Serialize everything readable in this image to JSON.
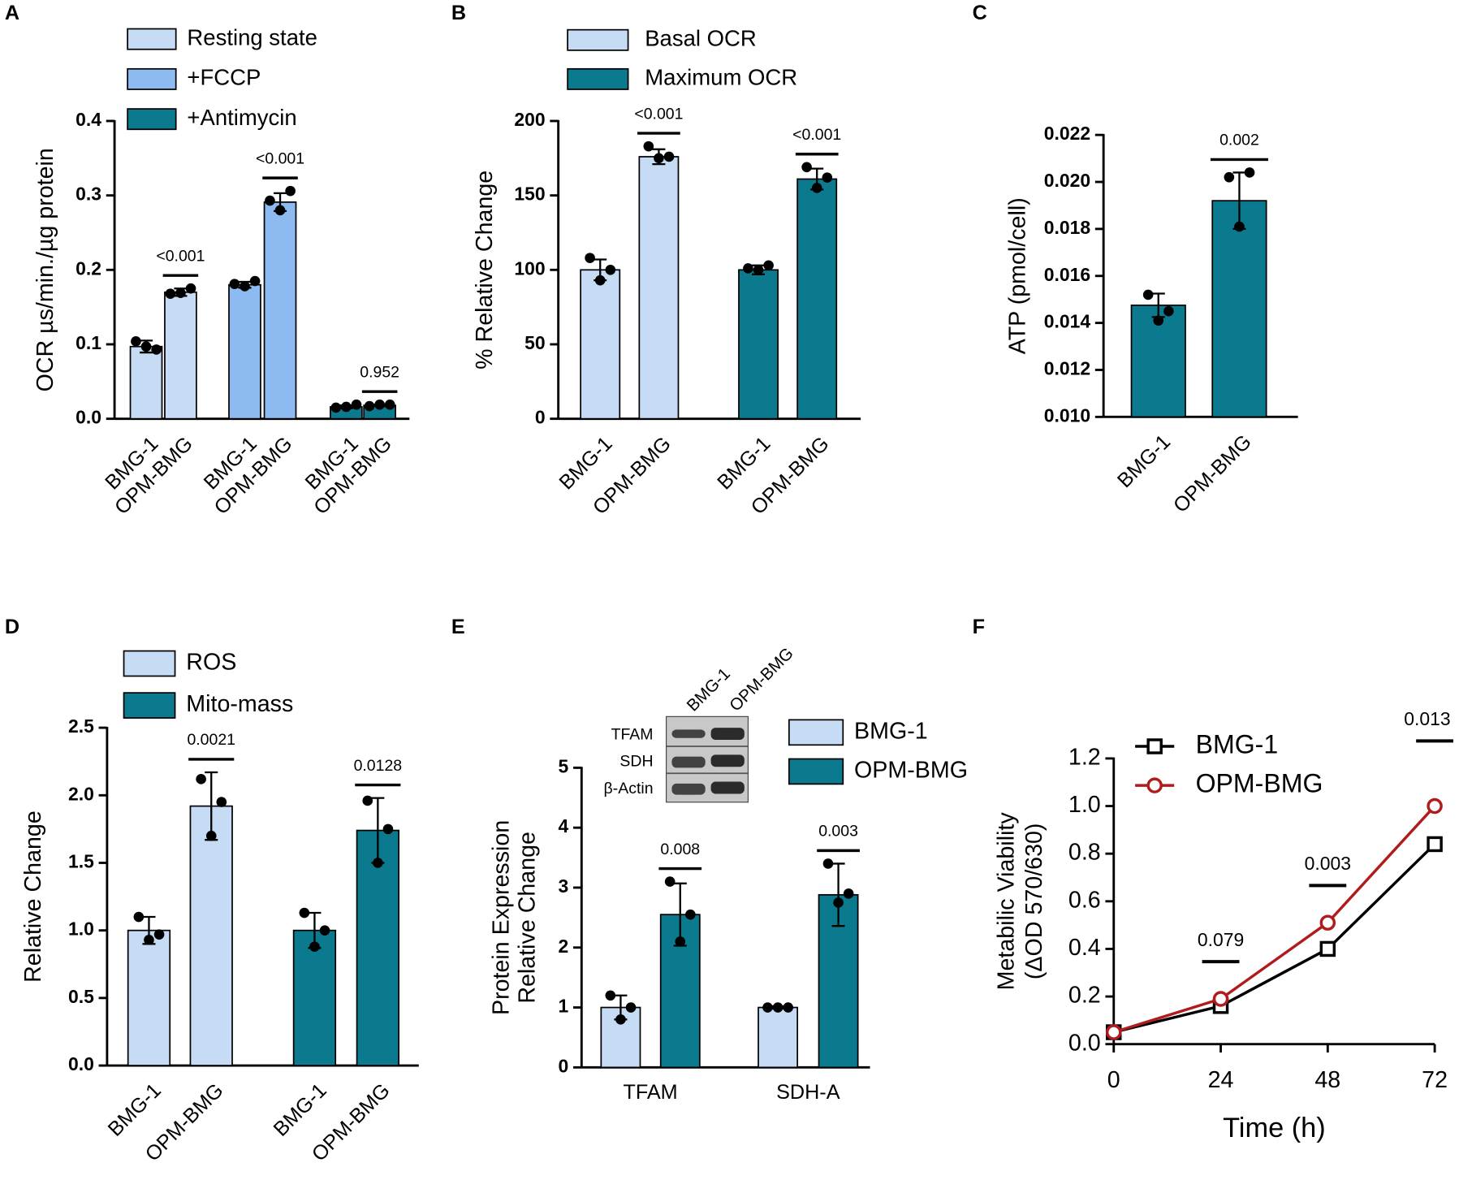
{
  "chart_data": [
    {
      "type": "bar",
      "panel": "A",
      "ylabel": "OCR µs/min./µg protein",
      "categories": [
        "BMG-1",
        "OPM-BMG"
      ],
      "ylim": [
        0,
        0.4
      ],
      "yticks": [
        {
          "value": 0,
          "label": "0.0"
        },
        0.1,
        0.2,
        0.3,
        0.4
      ],
      "series": [
        {
          "name": "Resting state",
          "color": "#c6dcf5",
          "values": [
            0.097,
            0.17
          ],
          "errors": [
            0.008,
            0.005
          ],
          "points": [
            [
              0.104,
              0.093,
              0.097
            ],
            [
              0.168,
              0.175,
              0.169
            ]
          ],
          "p": "<0.001"
        },
        {
          "name": "+FCCP",
          "color": "#8dbaf0",
          "values": [
            0.18,
            0.291
          ],
          "errors": [
            0.004,
            0.012
          ],
          "points": [
            [
              0.181,
              0.185,
              0.178
            ],
            [
              0.293,
              0.306,
              0.28
            ]
          ],
          "p": "<0.001"
        },
        {
          "name": "+Antimycin",
          "color": "#0b7a8e",
          "values": [
            0.016,
            0.018
          ],
          "errors": [
            0.002,
            0.001
          ],
          "points": [
            [
              0.015,
              0.019,
              0.016
            ],
            [
              0.017,
              0.019,
              0.019
            ]
          ],
          "p": "0.952"
        }
      ]
    },
    {
      "type": "bar",
      "panel": "B",
      "ylabel": "% Relative Change",
      "categories": [
        "BMG-1",
        "OPM-BMG"
      ],
      "ylim": [
        0,
        200
      ],
      "yticks": [
        0,
        50,
        100,
        150,
        200
      ],
      "series": [
        {
          "name": "Basal OCR",
          "color": "#c6dcf5",
          "values": [
            100,
            176
          ],
          "errors": [
            7,
            5
          ],
          "points": [
            [
              108,
              100,
              93
            ],
            [
              183,
              176,
              175
            ]
          ],
          "p": "<0.001"
        },
        {
          "name": "Maximum OCR",
          "color": "#0b7a8e",
          "values": [
            100,
            161
          ],
          "errors": [
            3,
            7
          ],
          "points": [
            [
              101,
              103,
              100
            ],
            [
              169,
              162,
              155
            ]
          ],
          "p": "<0.001"
        }
      ]
    },
    {
      "type": "bar",
      "panel": "C",
      "ylabel": "ATP (pmol/cell)",
      "categories": [
        "BMG-1",
        "OPM-BMG"
      ],
      "ylim": [
        0.01,
        0.022
      ],
      "yticks": [
        {
          "value": 0.01,
          "label": "0.010"
        },
        0.012,
        0.014,
        0.016,
        0.018,
        {
          "value": 0.02,
          "label": "0.020"
        },
        0.022
      ],
      "series": [
        {
          "color": "#0b7a8e",
          "values": [
            0.01475,
            0.0192
          ],
          "errors": [
            0.0005,
            0.0012
          ],
          "points": [
            [
              0.0152,
              0.0145,
              0.0141
            ],
            [
              0.0202,
              0.0204,
              0.0181
            ]
          ],
          "p": "0.002"
        }
      ]
    },
    {
      "type": "bar",
      "panel": "D",
      "ylabel": "Relative Change",
      "categories": [
        "BMG-1",
        "OPM-BMG"
      ],
      "ylim": [
        0,
        2.5
      ],
      "yticks": [
        {
          "value": 0,
          "label": "0.0"
        },
        0.5,
        {
          "value": 1,
          "label": "1.0"
        },
        1.5,
        {
          "value": 2,
          "label": "2.0"
        },
        2.5
      ],
      "series": [
        {
          "name": "ROS",
          "color": "#c6dcf5",
          "values": [
            1.0,
            1.92
          ],
          "errors": [
            0.1,
            0.25
          ],
          "points": [
            [
              1.1,
              0.97,
              0.93
            ],
            [
              2.12,
              1.95,
              1.7
            ]
          ],
          "p": "0.0021"
        },
        {
          "name": "Mito-mass",
          "color": "#0b7a8e",
          "values": [
            1.0,
            1.74
          ],
          "errors": [
            0.13,
            0.24
          ],
          "points": [
            [
              1.13,
              1.0,
              0.88
            ],
            [
              1.96,
              1.75,
              1.5
            ]
          ],
          "p": "0.0128"
        }
      ]
    },
    {
      "type": "grouped_bar",
      "panel": "E",
      "ylabel": [
        "Protein Expression",
        "Relative Change"
      ],
      "categories": [
        "TFAM",
        "SDH-A"
      ],
      "p_values": [
        "0.008",
        "0.003"
      ],
      "ylim": [
        0,
        5
      ],
      "yticks": [
        0,
        1,
        2,
        3,
        4,
        5
      ],
      "blot": {
        "rows": [
          "TFAM",
          "SDH",
          "β-Actin"
        ],
        "columns": [
          "BMG-1",
          "OPM-BMG"
        ]
      },
      "series": [
        {
          "name": "BMG-1",
          "color": "#c6dcf5",
          "values": [
            1.0,
            1.0
          ],
          "errors": [
            0.2,
            0.02
          ],
          "points": [
            [
              1.2,
              1.0,
              0.8
            ],
            [
              1.0,
              1.0,
              1.0
            ]
          ]
        },
        {
          "name": "OPM-BMG",
          "color": "#0b7a8e",
          "values": [
            2.55,
            2.88
          ],
          "errors": [
            0.52,
            0.52
          ],
          "points": [
            [
              3.1,
              2.55,
              2.1
            ],
            [
              3.4,
              2.9,
              2.75
            ]
          ]
        }
      ]
    },
    {
      "type": "line",
      "panel": "F",
      "ylabel": [
        "Metabilic Viability",
        "(ΔOD 570/630)"
      ],
      "xlabel": "Time (h)",
      "x": [
        0,
        24,
        48,
        72
      ],
      "xlim": [
        0,
        72
      ],
      "xticks": [
        0,
        24,
        48,
        72
      ],
      "ylim": [
        0,
        1.2
      ],
      "yticks": [
        {
          "value": 0,
          "label": "0.0"
        },
        0.2,
        0.4,
        0.6,
        0.8,
        {
          "value": 1,
          "label": "1.0"
        },
        1.2
      ],
      "annotations": [
        {
          "x": 24,
          "text": "0.079"
        },
        {
          "x": 48,
          "text": "0.003"
        },
        {
          "x": 72,
          "text": "0.013"
        }
      ],
      "series": [
        {
          "name": "BMG-1",
          "color": "#000000",
          "marker": "square",
          "values": [
            0.05,
            0.16,
            0.4,
            0.84
          ]
        },
        {
          "name": "OPM-BMG",
          "color": "#b01c1c",
          "marker": "circle",
          "values": [
            0.05,
            0.19,
            0.51,
            1.0
          ]
        }
      ]
    }
  ]
}
